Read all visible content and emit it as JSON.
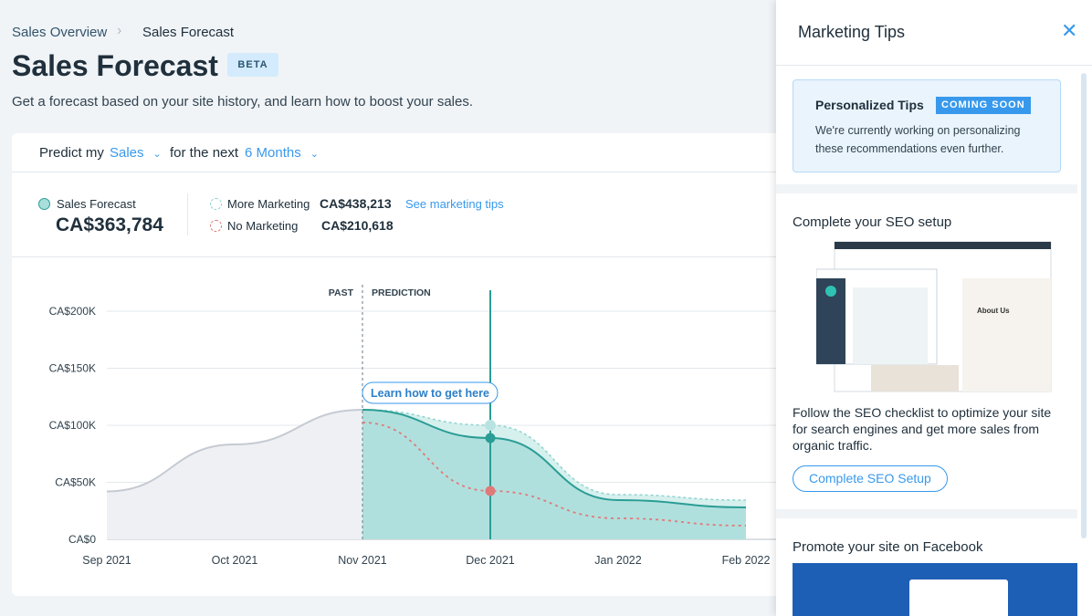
{
  "breadcrumb": [
    "Sales Overview",
    "Sales Forecast"
  ],
  "header": {
    "title": "Sales Forecast",
    "badge": "BETA",
    "subtitle": "Get a forecast based on your site history, and learn how to boost your sales."
  },
  "controls": {
    "predict_label": "Predict my",
    "metric": "Sales",
    "period_label": "for the next",
    "period": "6 Months"
  },
  "summary": {
    "forecast_label": "Sales Forecast",
    "forecast_value": "CA$363,784",
    "more_label": "More Marketing",
    "more_value": "CA$438,213",
    "link": "See marketing tips",
    "no_label": "No Marketing",
    "no_value": "CA$210,618"
  },
  "chart": {
    "type": "line",
    "past_label": "PAST",
    "prediction_label": "PREDICTION",
    "callout": "Learn how to get here",
    "categories": [
      "Sep 2021",
      "Oct 2021",
      "Nov 2021",
      "Dec 2021",
      "Jan 2022",
      "Feb 2022"
    ],
    "ylim": [
      0,
      200000
    ],
    "yticks": [
      {
        "value": 0,
        "label": "CA$0"
      },
      {
        "value": 50000,
        "label": "CA$50K"
      },
      {
        "value": 100000,
        "label": "CA$100K"
      },
      {
        "value": 150000,
        "label": "CA$150K"
      },
      {
        "value": 200000,
        "label": "CA$200K"
      }
    ],
    "grid": true,
    "series": [
      {
        "name": "Past",
        "color": "#c5cad3",
        "values": [
          42000,
          83200,
          113600,
          null,
          null,
          null
        ]
      },
      {
        "name": "More Marketing",
        "color": "#8fd4d0",
        "values": [
          null,
          null,
          113600,
          100000,
          39200,
          34400
        ]
      },
      {
        "name": "Sales Forecast",
        "color": "#2a9d95",
        "values": [
          null,
          null,
          113600,
          88800,
          34400,
          28000
        ]
      },
      {
        "name": "No Marketing",
        "color": "#e07a7a",
        "values": [
          null,
          null,
          102400,
          42400,
          18400,
          12000
        ]
      }
    ]
  },
  "panel": {
    "title": "Marketing Tips",
    "tips_card": {
      "title": "Personalized Tips",
      "badge": "COMING SOON",
      "text": "We're currently working on personalizing these recommendations even further."
    },
    "seo": {
      "title": "Complete your SEO setup",
      "text": "Follow the SEO checklist to optimize your site for search engines and get more sales from organic traffic.",
      "button": "Complete SEO Setup"
    },
    "facebook": {
      "title": "Promote your site on Facebook"
    }
  }
}
